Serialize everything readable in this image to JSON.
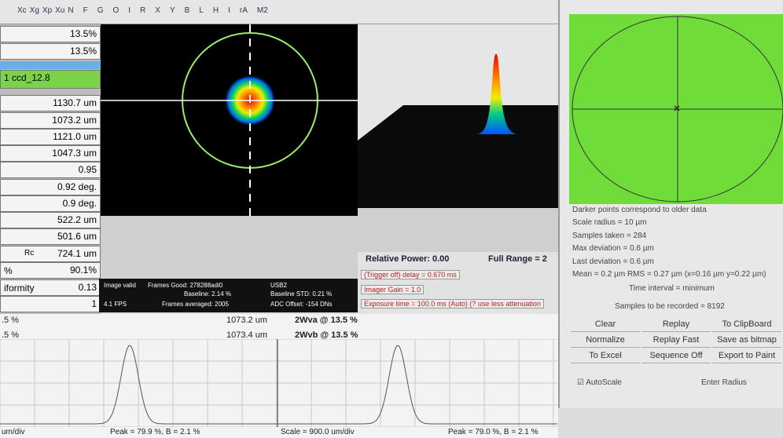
{
  "toolbar": {
    "items": [
      "Xc",
      "Xg",
      "Xp",
      "Xu",
      "N",
      "F",
      "G",
      "O",
      "I",
      "R",
      "X",
      "Y",
      "B",
      "L",
      "H",
      "I",
      "rA",
      "M2"
    ]
  },
  "results": {
    "rows": [
      {
        "value": "13.5%"
      },
      {
        "value": "13.5%"
      },
      {
        "value": "1 ccd_12.8"
      },
      {
        "value": "1130.7 um"
      },
      {
        "value": "1073.2 um"
      },
      {
        "value": "1121.0 um"
      },
      {
        "value": "1047.3 um"
      },
      {
        "value": "0.95"
      },
      {
        "value": "0.92 deg."
      },
      {
        "value": "0.9 deg."
      },
      {
        "value": "522.2 um"
      },
      {
        "value": "501.6 um"
      },
      {
        "label": "Rc",
        "value": "724.1 um"
      },
      {
        "label": "%",
        "value": "90.1%"
      },
      {
        "label": "iformity",
        "value": "0.13"
      },
      {
        "value": "1"
      }
    ]
  },
  "image_info": {
    "status": "Image valid",
    "frames_good": "Frames Good: 278288adi0",
    "interface": "USB2",
    "baseline": "Baseline: 2.14 %",
    "baseline_std": "Baseline STD: 0.21 %",
    "fps": "4.1 FPS",
    "frames_averaged": "Frames averaged: 2005",
    "adc_offset": "ADC Offset: -154 DNs"
  },
  "camera": {
    "relative_power": "Relative Power: 0.00",
    "full_range": "Full Range = 2",
    "trigger": "(Trigger off) delay = 0.670 ms",
    "gain": "Imager Gain = 1.0",
    "exposure": "Exposure time = 100.0 ms (Auto)  (? use less attenuation"
  },
  "stability": {
    "lines": [
      "Darker points correspond to older data",
      "Scale radius = 10 µm",
      "Samples taken = 284",
      "Max deviation = 0.6 µm",
      "Last deviation = 0.6 µm",
      "Mean = 0.2 µm RMS = 0.27 µm (x=0.16 µm y=0.22 µm)"
    ],
    "time_interval": "Time interval = minimum",
    "samples_to_record": "Samples to be recorded = 8192",
    "buttons": [
      "Clear",
      "Replay",
      "To ClipBoard",
      "Normalize",
      "Replay Fast",
      "Save as bitmap",
      "To Excel",
      "Sequence Off",
      "Export to Paint"
    ],
    "autoscale": "AutoScale",
    "enter_radius": "Enter Radius"
  },
  "profiles": [
    {
      "level": ".5 %",
      "width": "1073.2 um",
      "name": "2Wva @ 13.5 %",
      "scale": "um/div",
      "peak": "Peak = 79.9 %, B = 2.1 %"
    },
    {
      "level": ".5 %",
      "width": "1073.4 um",
      "name": "2Wvb @ 13.5 %",
      "scale": "Scale = 900.0 um/div",
      "peak": "Peak = 79.0 %, B = 2.1 %"
    }
  ]
}
